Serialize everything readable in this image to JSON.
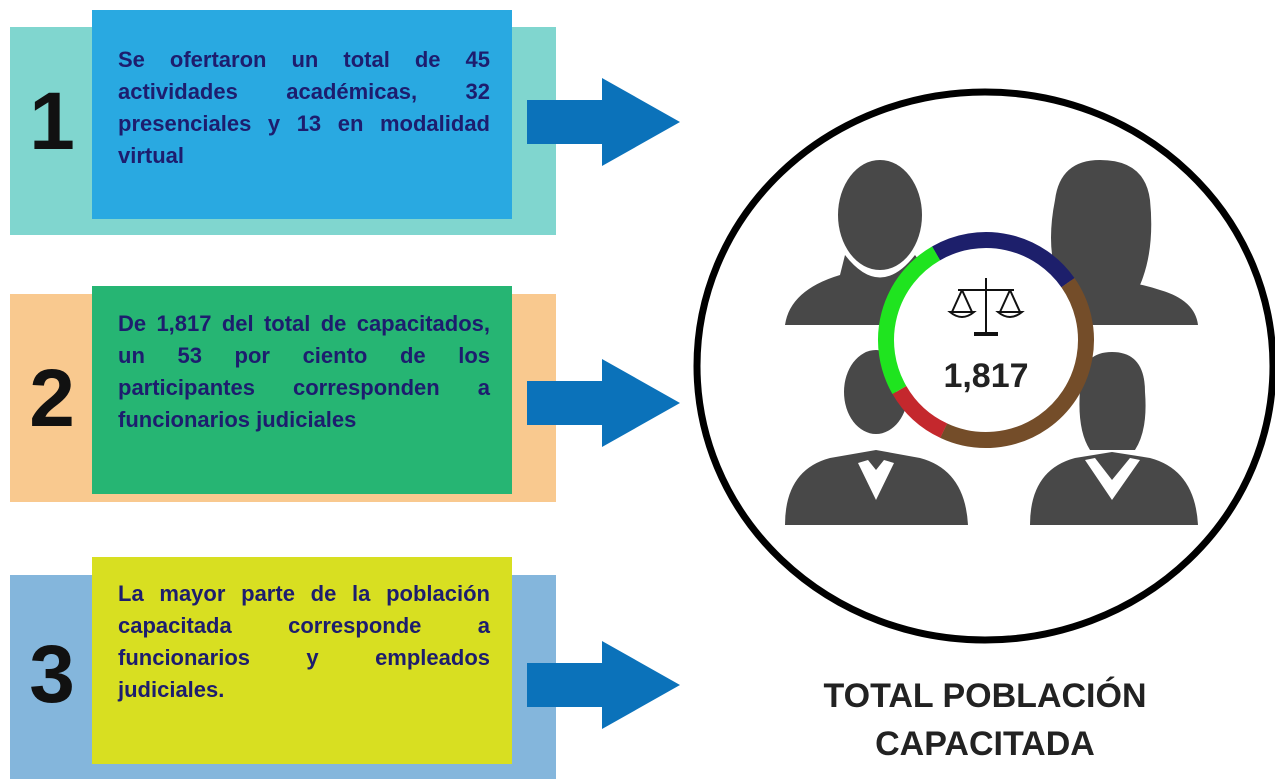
{
  "steps": [
    {
      "number": "1",
      "text": "Se ofertaron un total de 45 actividades académicas, 32 presenciales y 13 en modalidad virtual"
    },
    {
      "number": "2",
      "text": "De 1,817 del total de capacitados, un 53 por ciento de los participantes corresponden a funcionarios judiciales"
    },
    {
      "number": "3",
      "text": "La mayor parte de la población capacitada corresponde a funcionarios y empleados judiciales."
    }
  ],
  "center_value": "1,817",
  "caption": "TOTAL POBLACIÓN CAPACITADA"
}
